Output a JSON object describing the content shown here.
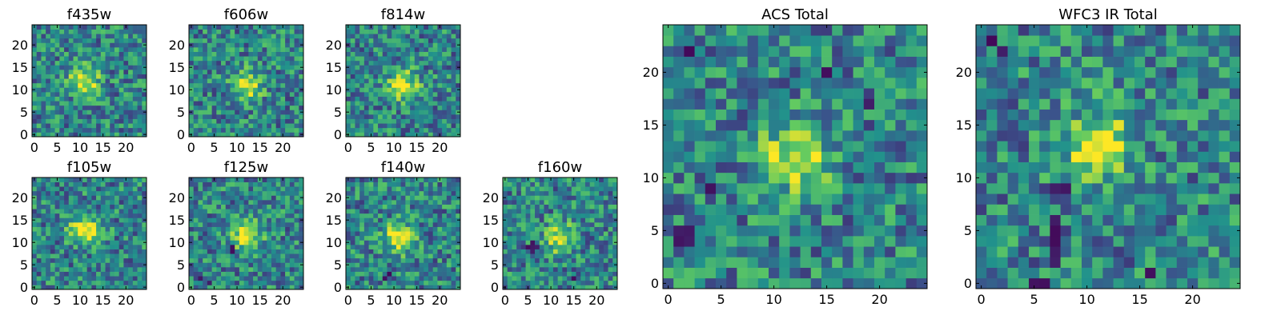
{
  "figure": {
    "colormap": "viridis",
    "colormap_stops": [
      "#440154",
      "#3b528b",
      "#21918c",
      "#5ec962",
      "#fde725"
    ]
  },
  "chart_data": [
    {
      "type": "heatmap",
      "title": "f435w",
      "grid_size": 25,
      "xlim": [
        -0.5,
        24.5
      ],
      "ylim": [
        -0.5,
        24.5
      ],
      "xticks": [
        0,
        5,
        10,
        15,
        20
      ],
      "yticks": [
        0,
        5,
        10,
        15,
        20
      ],
      "peak": [
        11,
        12
      ],
      "features": []
    },
    {
      "type": "heatmap",
      "title": "f606w",
      "grid_size": 25,
      "xlim": [
        -0.5,
        24.5
      ],
      "ylim": [
        -0.5,
        24.5
      ],
      "xticks": [
        0,
        5,
        10,
        15,
        20
      ],
      "yticks": [
        0,
        5,
        10,
        15,
        20
      ],
      "peak": [
        12,
        11
      ],
      "features": []
    },
    {
      "type": "heatmap",
      "title": "f814w",
      "grid_size": 25,
      "xlim": [
        -0.5,
        24.5
      ],
      "ylim": [
        -0.5,
        24.5
      ],
      "xticks": [
        0,
        5,
        10,
        15,
        20
      ],
      "yticks": [
        0,
        5,
        10,
        15,
        20
      ],
      "peak": [
        12,
        11
      ],
      "features": []
    },
    {
      "type": "heatmap",
      "title": "f105w",
      "grid_size": 25,
      "xlim": [
        -0.5,
        24.5
      ],
      "ylim": [
        -0.5,
        24.5
      ],
      "xticks": [
        0,
        5,
        10,
        15,
        20
      ],
      "yticks": [
        0,
        5,
        10,
        15,
        20
      ],
      "peak": [
        11,
        13
      ],
      "features": []
    },
    {
      "type": "heatmap",
      "title": "f125w",
      "grid_size": 25,
      "xlim": [
        -0.5,
        24.5
      ],
      "ylim": [
        -0.5,
        24.5
      ],
      "xticks": [
        0,
        5,
        10,
        15,
        20
      ],
      "yticks": [
        0,
        5,
        10,
        15,
        20
      ],
      "peak": [
        12,
        12
      ],
      "features": [
        [
          9,
          8
        ],
        [
          9,
          9
        ],
        [
          2,
          2
        ],
        [
          4,
          1
        ]
      ]
    },
    {
      "type": "heatmap",
      "title": "f140w",
      "grid_size": 25,
      "xlim": [
        -0.5,
        24.5
      ],
      "ylim": [
        -0.5,
        24.5
      ],
      "xticks": [
        0,
        5,
        10,
        15,
        20
      ],
      "yticks": [
        0,
        5,
        10,
        15,
        20
      ],
      "peak": [
        11,
        11
      ],
      "features": [
        [
          8,
          2
        ],
        [
          9,
          3
        ]
      ]
    },
    {
      "type": "heatmap",
      "title": "f160w",
      "grid_size": 25,
      "xlim": [
        -0.5,
        24.5
      ],
      "ylim": [
        -0.5,
        24.5
      ],
      "xticks": [
        0,
        5,
        10,
        15,
        20
      ],
      "yticks": [
        0,
        5,
        10,
        15,
        20
      ],
      "peak": [
        12,
        11
      ],
      "features": [
        [
          6,
          9
        ],
        [
          5,
          9
        ],
        [
          7,
          9
        ],
        [
          6,
          10
        ],
        [
          6,
          8
        ],
        [
          15,
          2
        ]
      ]
    },
    {
      "type": "heatmap",
      "title": "ACS Total",
      "grid_size": 25,
      "xlim": [
        -0.5,
        24.5
      ],
      "ylim": [
        -0.5,
        24.5
      ],
      "xticks": [
        0,
        5,
        10,
        15,
        20
      ],
      "yticks": [
        0,
        5,
        10,
        15,
        20
      ],
      "peak": [
        12,
        12
      ],
      "features": [
        [
          1,
          5
        ],
        [
          2,
          5
        ],
        [
          1,
          4
        ],
        [
          2,
          4
        ],
        [
          4,
          9
        ],
        [
          15,
          20
        ],
        [
          19,
          17
        ],
        [
          2,
          22
        ]
      ]
    },
    {
      "type": "heatmap",
      "title": "WFC3 IR Total",
      "grid_size": 25,
      "xlim": [
        -0.5,
        24.5
      ],
      "ylim": [
        -0.5,
        24.5
      ],
      "xticks": [
        0,
        5,
        10,
        15,
        20
      ],
      "yticks": [
        0,
        5,
        10,
        15,
        20
      ],
      "peak": [
        11,
        13
      ],
      "features": [
        [
          7,
          3
        ],
        [
          7,
          4
        ],
        [
          7,
          5
        ],
        [
          7,
          6
        ],
        [
          7,
          2
        ],
        [
          5,
          0
        ],
        [
          6,
          0
        ],
        [
          7,
          9
        ],
        [
          8,
          9
        ],
        [
          2,
          22
        ],
        [
          1,
          23
        ],
        [
          16,
          1
        ]
      ]
    }
  ]
}
